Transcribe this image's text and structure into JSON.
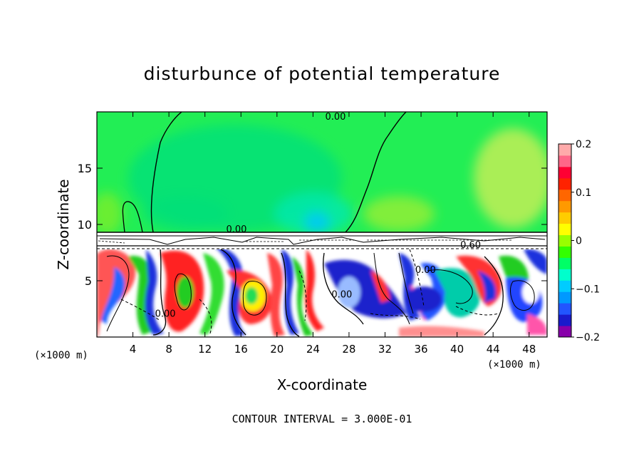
{
  "chart_data": {
    "type": "heatmap",
    "title": "disturbunce of potential temperature",
    "xlabel": "X-coordinate",
    "ylabel": "Z-coordinate",
    "x_unit_left": "(×1000 m)",
    "x_unit_right": "(×1000 m)",
    "xlim": [
      0,
      50
    ],
    "ylim": [
      0,
      20
    ],
    "x_ticks": [
      4,
      8,
      12,
      16,
      20,
      24,
      28,
      32,
      36,
      40,
      44,
      48
    ],
    "x_tick_labels": [
      "4",
      "8",
      "12",
      "16",
      "20",
      "24",
      "28",
      "32",
      "36",
      "40",
      "44",
      "48"
    ],
    "y_ticks": [
      5,
      10,
      15
    ],
    "y_tick_labels": [
      "5",
      "10",
      "15"
    ],
    "colorbar": {
      "range": [
        -0.2,
        0.2
      ],
      "ticks": [
        0.2,
        0.1,
        0,
        -0.1,
        -0.2
      ],
      "tick_labels": [
        "0.2",
        "0.1",
        "0",
        "−0.1",
        "−0.2"
      ],
      "colors": [
        "#8800aa",
        "#1a1acc",
        "#2255ff",
        "#0099ff",
        "#00ccff",
        "#00ffcc",
        "#00ff66",
        "#33ff00",
        "#99ff00",
        "#ffff00",
        "#ffcc00",
        "#ff9900",
        "#ff6600",
        "#ff2200",
        "#ff0033",
        "#ff6688",
        "#ffaaaa"
      ]
    },
    "contour_labels": [
      {
        "text": "0.00",
        "x": 26.5,
        "y": 19.3
      },
      {
        "text": "0.00",
        "x": 15.5,
        "y": 9.3
      },
      {
        "text": "0.60",
        "x": 41.5,
        "y": 7.9
      },
      {
        "text": "0.00",
        "x": 36.5,
        "y": 5.7
      },
      {
        "text": "0.00",
        "x": 27.2,
        "y": 3.5
      },
      {
        "text": "0.00",
        "x": 7.6,
        "y": 1.8
      }
    ],
    "footer": "CONTOUR INTERVAL = 3.000E-01"
  }
}
